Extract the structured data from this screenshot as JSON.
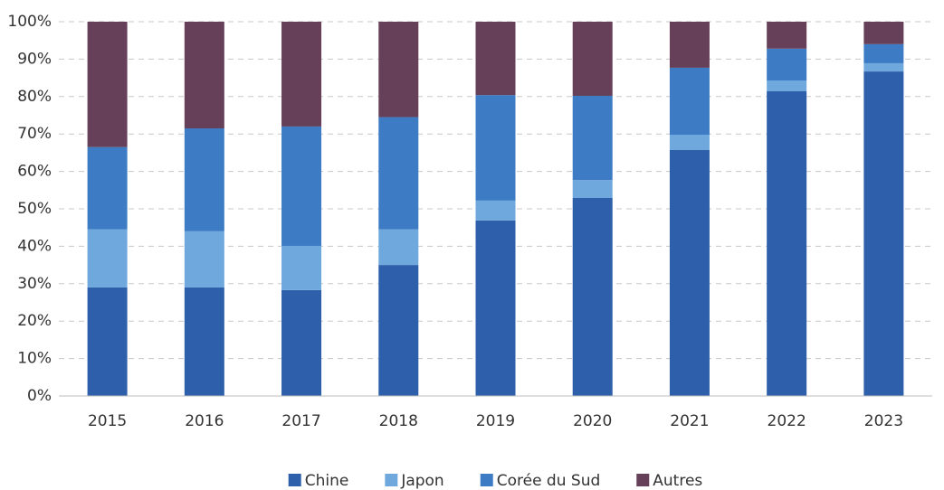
{
  "chart_data": {
    "type": "stacked-bar",
    "categories": [
      "2015",
      "2016",
      "2017",
      "2018",
      "2019",
      "2020",
      "2021",
      "2022",
      "2023"
    ],
    "series": [
      {
        "name": "Chine",
        "color": "#2e5faa",
        "values": [
          29,
          29,
          28.3,
          35,
          46.9,
          52.9,
          65.7,
          81.4,
          86.7
        ]
      },
      {
        "name": "Japon",
        "color": "#6fa8dc",
        "values": [
          15.5,
          15,
          11.8,
          9.5,
          5.3,
          4.8,
          4.1,
          2.9,
          2.2
        ]
      },
      {
        "name": "Corée du Sud",
        "color": "#3d7cc4",
        "values": [
          22,
          27.5,
          31.9,
          30,
          28.2,
          22.5,
          17.9,
          8.5,
          5.1
        ]
      },
      {
        "name": "Autres",
        "color": "#654058",
        "values": [
          33.5,
          28.5,
          28,
          25.5,
          19.6,
          19.8,
          12.3,
          7.2,
          6
        ]
      }
    ],
    "ylim": [
      0,
      100
    ],
    "yticks": [
      {
        "value": 0,
        "label": "0%"
      },
      {
        "value": 10,
        "label": "10%"
      },
      {
        "value": 20,
        "label": "20%"
      },
      {
        "value": 30,
        "label": "30%"
      },
      {
        "value": 40,
        "label": "40%"
      },
      {
        "value": 50,
        "label": "50%"
      },
      {
        "value": 60,
        "label": "60%"
      },
      {
        "value": 70,
        "label": "70%"
      },
      {
        "value": 80,
        "label": "80%"
      },
      {
        "value": 90,
        "label": "90%"
      },
      {
        "value": 100,
        "label": "100%"
      }
    ],
    "grid": true,
    "legend": "bottom"
  }
}
